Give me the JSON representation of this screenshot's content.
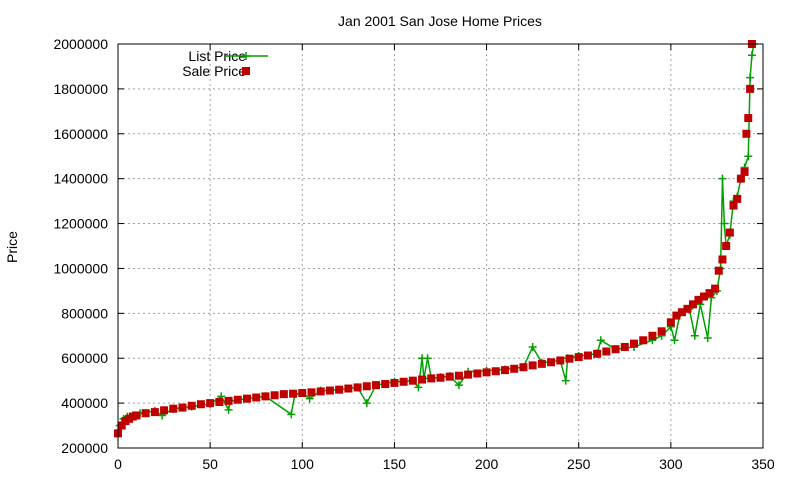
{
  "chart_data": {
    "type": "line",
    "title": "Jan 2001 San Jose Home Prices",
    "xlabel": "",
    "ylabel": "Price",
    "xlim": [
      0,
      350
    ],
    "ylim": [
      200000,
      2000000
    ],
    "x_ticks": [
      "0",
      "50",
      "100",
      "150",
      "200",
      "250",
      "300",
      "350"
    ],
    "y_ticks": [
      "200000",
      "400000",
      "600000",
      "800000",
      "1000000",
      "1200000",
      "1400000",
      "1600000",
      "1800000",
      "2000000"
    ],
    "grid": true,
    "legend_position": "top-left",
    "series": [
      {
        "name": "List Price",
        "style": "lines+plus-markers",
        "color": "#00a000",
        "x": [
          0,
          1,
          3,
          5,
          8,
          12,
          20,
          24,
          30,
          40,
          50,
          56,
          60,
          61,
          70,
          80,
          94,
          96,
          100,
          104,
          110,
          120,
          130,
          135,
          140,
          150,
          160,
          163,
          165,
          166,
          168,
          170,
          175,
          180,
          185,
          190,
          200,
          210,
          220,
          225,
          230,
          240,
          243,
          244,
          250,
          260,
          262,
          270,
          280,
          290,
          295,
          300,
          302,
          305,
          310,
          313,
          316,
          320,
          322,
          325,
          327,
          328,
          329,
          330,
          332,
          334,
          336,
          338,
          340,
          342,
          343,
          344,
          345
        ],
        "y": [
          270000,
          300000,
          330000,
          340000,
          345000,
          355000,
          365000,
          345000,
          375000,
          385000,
          395000,
          430000,
          370000,
          410000,
          420000,
          430000,
          350000,
          440000,
          445000,
          420000,
          455000,
          460000,
          470000,
          400000,
          480000,
          495000,
          500000,
          470000,
          600000,
          510000,
          600000,
          510000,
          515000,
          520000,
          480000,
          540000,
          545000,
          550000,
          560000,
          650000,
          580000,
          590000,
          500000,
          600000,
          610000,
          620000,
          680000,
          640000,
          650000,
          680000,
          700000,
          740000,
          680000,
          800000,
          820000,
          700000,
          840000,
          690000,
          870000,
          900000,
          1000000,
          1400000,
          1200000,
          1100000,
          1150000,
          1300000,
          1320000,
          1400000,
          1450000,
          1500000,
          1850000,
          1950000,
          2000000
        ]
      },
      {
        "name": "Sale Price",
        "style": "square-markers",
        "color": "#c00000",
        "x": [
          0,
          2,
          4,
          6,
          8,
          10,
          15,
          20,
          25,
          30,
          35,
          40,
          45,
          50,
          55,
          60,
          65,
          70,
          75,
          80,
          85,
          90,
          95,
          100,
          105,
          110,
          115,
          120,
          125,
          130,
          135,
          140,
          145,
          150,
          155,
          160,
          165,
          170,
          175,
          180,
          185,
          190,
          195,
          200,
          205,
          210,
          215,
          220,
          225,
          230,
          235,
          240,
          245,
          250,
          255,
          260,
          265,
          270,
          275,
          280,
          285,
          290,
          295,
          300,
          303,
          306,
          309,
          312,
          315,
          318,
          321,
          324,
          326,
          328,
          330,
          332,
          334,
          336,
          338,
          340,
          341,
          342,
          343,
          344
        ],
        "y": [
          265000,
          300000,
          320000,
          330000,
          340000,
          345000,
          355000,
          360000,
          368000,
          375000,
          380000,
          388000,
          395000,
          400000,
          405000,
          410000,
          415000,
          420000,
          425000,
          430000,
          435000,
          440000,
          442000,
          445000,
          448000,
          452000,
          456000,
          460000,
          465000,
          470000,
          475000,
          480000,
          485000,
          490000,
          495000,
          500000,
          505000,
          510000,
          513000,
          518000,
          522000,
          527000,
          532000,
          537000,
          542000,
          547000,
          553000,
          560000,
          568000,
          575000,
          582000,
          590000,
          598000,
          605000,
          612000,
          620000,
          630000,
          640000,
          650000,
          665000,
          680000,
          700000,
          720000,
          760000,
          790000,
          805000,
          820000,
          840000,
          860000,
          875000,
          890000,
          910000,
          990000,
          1040000,
          1100000,
          1160000,
          1280000,
          1310000,
          1400000,
          1430000,
          1600000,
          1670000,
          1800000,
          2000000
        ]
      }
    ]
  }
}
